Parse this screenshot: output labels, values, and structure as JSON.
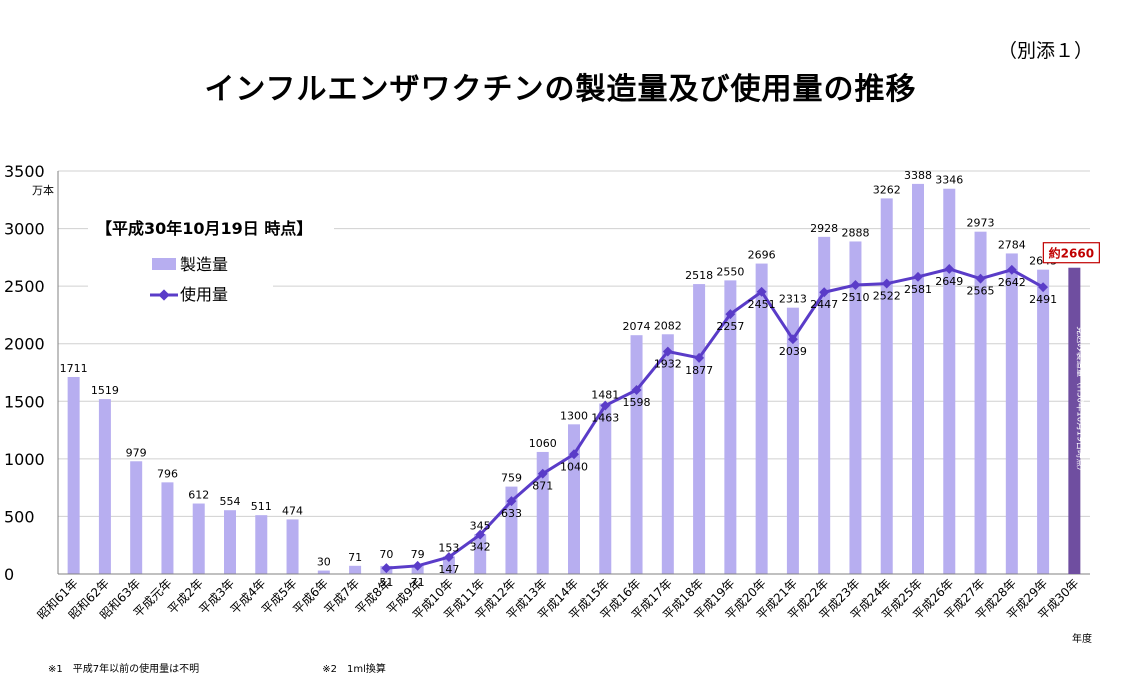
{
  "header": {
    "annex_label": "（別添１）",
    "title": "インフルエンザワクチンの製造量及び使用量の推移"
  },
  "notes": [
    "※1　平成7年以前の使用量は不明",
    "※2　1ml換算"
  ],
  "colors": {
    "bar": "#b7aef0",
    "line": "#5a3cc8",
    "estimate_bar": "#6f4ea0",
    "estimate_text": "#c00000",
    "grid": "#d0d0d0"
  },
  "chart_data": {
    "type": "bar",
    "subtitle": "【平成30年10月19日 時点】",
    "y_unit_label": "万本",
    "x_unit_label": "年度",
    "ylim": [
      0,
      3500
    ],
    "yticks": [
      0,
      500,
      1000,
      1500,
      2000,
      2500,
      3000,
      3500
    ],
    "grid": true,
    "legend_placement": "top-left",
    "categories": [
      "昭和61年",
      "昭和62年",
      "昭和63年",
      "平成元年",
      "平成2年",
      "平成3年",
      "平成4年",
      "平成5年",
      "平成6年",
      "平成7年",
      "平成8年",
      "平成9年",
      "平成10年",
      "平成11年",
      "平成12年",
      "平成13年",
      "平成14年",
      "平成15年",
      "平成16年",
      "平成17年",
      "平成18年",
      "平成19年",
      "平成20年",
      "平成21年",
      "平成22年",
      "平成23年",
      "平成24年",
      "平成25年",
      "平成26年",
      "平成27年",
      "平成28年",
      "平成29年",
      "平成30年"
    ],
    "series": [
      {
        "name": "製造量",
        "type": "bar",
        "values": [
          1711,
          1519,
          979,
          796,
          612,
          554,
          511,
          474,
          30,
          71,
          70,
          79,
          153,
          345,
          759,
          1060,
          1300,
          1481,
          2074,
          2082,
          2518,
          2550,
          2696,
          2313,
          2928,
          2888,
          3262,
          3388,
          3346,
          2973,
          2784,
          2643,
          null
        ]
      },
      {
        "name": "使用量",
        "type": "line",
        "values": [
          null,
          null,
          null,
          null,
          null,
          null,
          null,
          null,
          null,
          null,
          51,
          71,
          147,
          342,
          633,
          871,
          1040,
          1463,
          1598,
          1932,
          1877,
          2257,
          2451,
          2039,
          2447,
          2510,
          2522,
          2581,
          2649,
          2565,
          2642,
          2491,
          null
        ]
      }
    ],
    "estimate": {
      "category": "平成30年",
      "value": 2660,
      "label": "約2660",
      "bar_text": "見込み製造量（H30年10月19日時点）"
    }
  }
}
